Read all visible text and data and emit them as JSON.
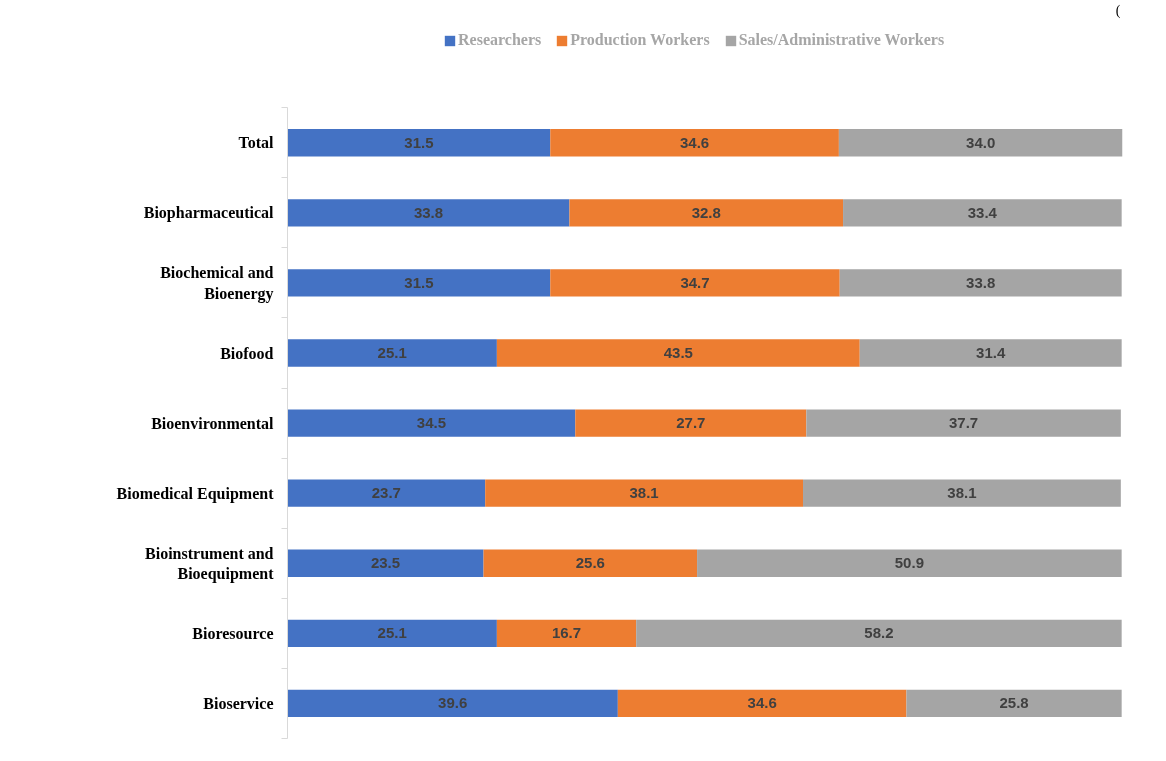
{
  "chart_data": {
    "type": "bar",
    "orientation": "horizontal",
    "stacked": true,
    "legend": "top",
    "tick_labels": "y",
    "categories": [
      "Total",
      "Biopharmaceutical",
      "Biochemical and Bioenergy",
      "Biofood",
      "Bioenvironmental",
      "Biomedical Equipment",
      "Bioinstrument and Bioequipment",
      "Bioresource",
      "Bioservice"
    ],
    "series": [
      {
        "name": "Researchers",
        "color": "#4472c4",
        "values": [
          31.5,
          33.8,
          31.5,
          25.1,
          34.5,
          23.7,
          23.5,
          25.1,
          39.6
        ],
        "value_labels": [
          "31.5",
          "33.8",
          "31.5",
          "25.1",
          "34.5",
          "23.7",
          "23.5",
          "25.1",
          "39.6"
        ]
      },
      {
        "name": "Production Workers",
        "color": "#ed7d31",
        "values": [
          34.6,
          32.8,
          34.7,
          43.5,
          27.7,
          38.1,
          25.6,
          16.7,
          34.6
        ],
        "value_labels": [
          "34.6",
          "32.8",
          "34.7",
          "43.5",
          "27.7",
          "38.1",
          "25.6",
          "16.7",
          "34.6"
        ]
      },
      {
        "name": "Sales/Administrative Workers",
        "color": "#a5a5a5",
        "values": [
          34.0,
          33.4,
          33.8,
          31.4,
          37.7,
          38.1,
          50.9,
          58.2,
          25.8
        ],
        "value_labels": [
          "34.0",
          "33.4",
          "33.8",
          "31.4",
          "37.7",
          "38.1",
          "50.9",
          "58.2",
          "25.8"
        ]
      }
    ],
    "annotations": [
      "("
    ]
  }
}
